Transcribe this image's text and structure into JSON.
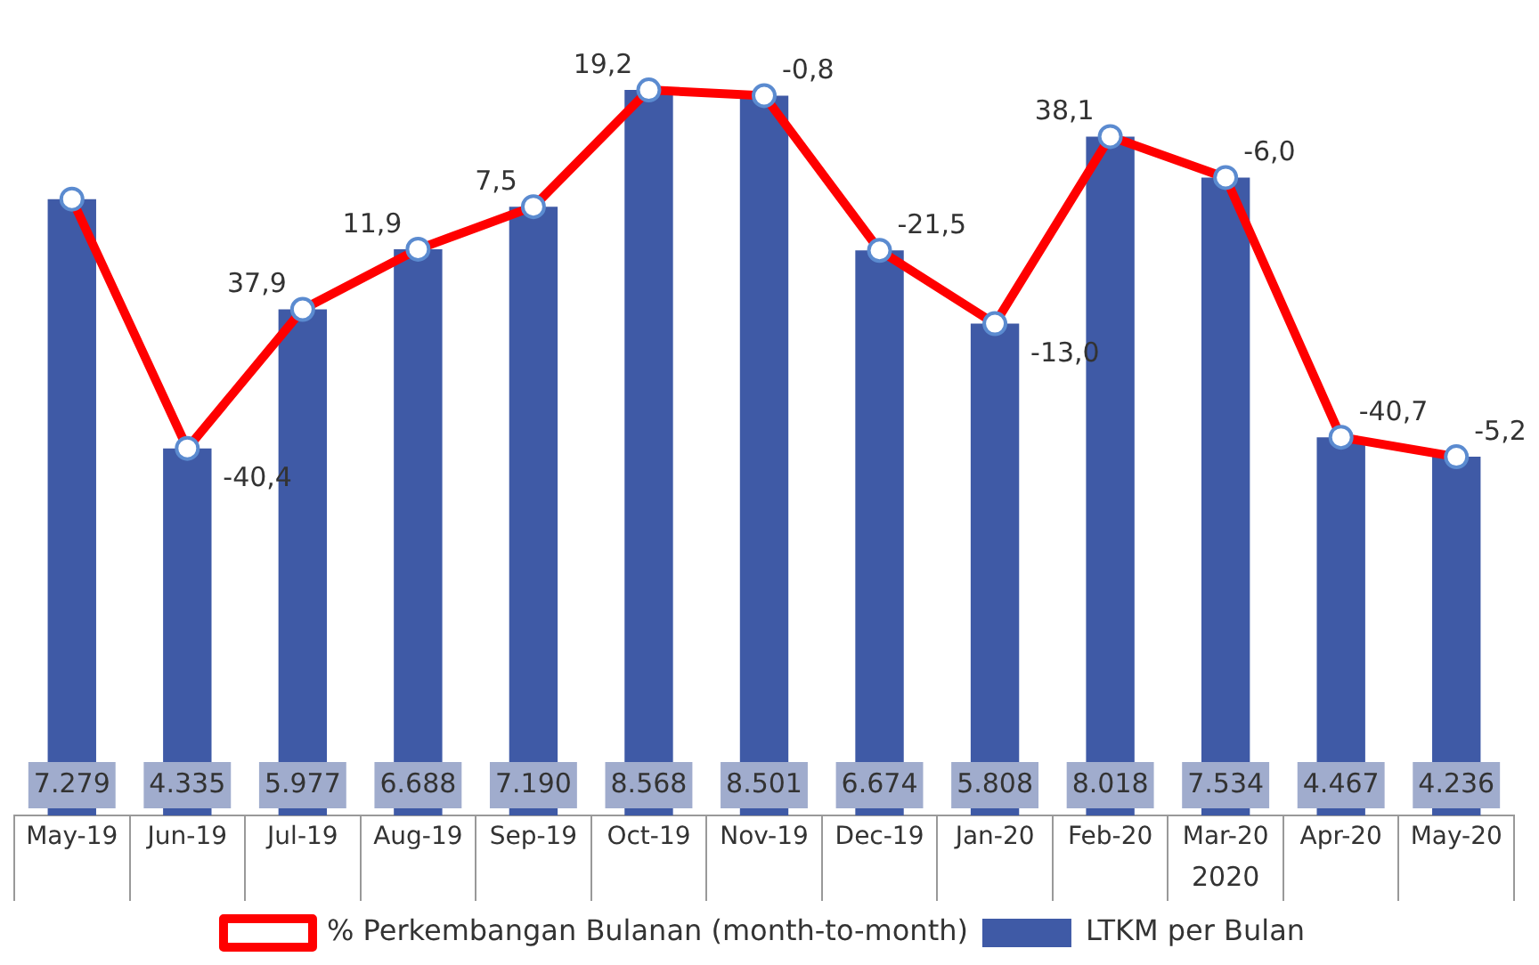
{
  "chart_data": {
    "type": "bar",
    "categories": [
      "May-19",
      "Jun-19",
      "Jul-19",
      "Aug-19",
      "Sep-19",
      "Oct-19",
      "Nov-19",
      "Dec-19",
      "Jan-20",
      "Feb-20",
      "Mar-20",
      "Apr-20",
      "May-20"
    ],
    "tick_labels": "x",
    "legend": "bottom",
    "marker": "circle",
    "line_style": "solid",
    "series": [
      {
        "name": "LTKM per Bulan",
        "color": "#3f5aa6",
        "values": [
          7279,
          4335,
          5977,
          6688,
          7190,
          8568,
          8501,
          6674,
          5808,
          8018,
          7534,
          4467,
          4236
        ],
        "value_labels": [
          "7.279",
          "4.335",
          "5.977",
          "6.688",
          "7.190",
          "8.568",
          "8.501",
          "6.674",
          "5.808",
          "8.018",
          "7.534",
          "4.467",
          "4.236"
        ]
      },
      {
        "name": "% Perkembangan Bulanan (month-to-month)",
        "type": "line",
        "color": "#ff0000",
        "values": [
          7279,
          4335,
          5977,
          6688,
          7190,
          8568,
          8501,
          6674,
          5808,
          8018,
          7534,
          4467,
          4236
        ]
      }
    ],
    "annotations": [
      {
        "text": "-40,4",
        "x": "Jun-19",
        "y": 4335
      },
      {
        "text": "37,9",
        "x": "Jul-19",
        "y": 5977
      },
      {
        "text": "11,9",
        "x": "Aug-19",
        "y": 6688
      },
      {
        "text": "7,5",
        "x": "Sep-19",
        "y": 7190
      },
      {
        "text": "19,2",
        "x": "Oct-19",
        "y": 8568
      },
      {
        "text": "-0,8",
        "x": "Nov-19",
        "y": 8501
      },
      {
        "text": "-21,5",
        "x": "Dec-19",
        "y": 6674
      },
      {
        "text": "-13,0",
        "x": "Jan-20",
        "y": 5808
      },
      {
        "text": "38,1",
        "x": "Feb-20",
        "y": 8018
      },
      {
        "text": "-6,0",
        "x": "Mar-20",
        "y": 7534
      },
      {
        "text": "-40,7",
        "x": "Apr-20",
        "y": 4467
      },
      {
        "text": "-5,2",
        "x": "May-20",
        "y": 4236
      },
      "2020"
    ]
  }
}
